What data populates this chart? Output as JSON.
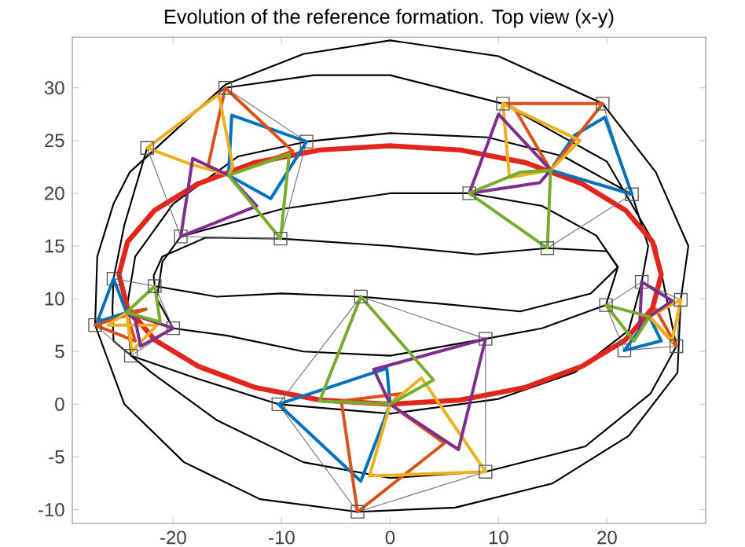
{
  "chart_data": {
    "type": "line",
    "title": "Evolution of the reference formation. Top view (x-y)",
    "xlim": [
      -29.3,
      29.1
    ],
    "ylim": [
      -11.3,
      34.8
    ],
    "xticks": [
      -20,
      -10,
      0,
      10,
      20
    ],
    "yticks": [
      -10,
      -5,
      0,
      5,
      10,
      15,
      20,
      25,
      30
    ],
    "grid": false,
    "marker": "none",
    "line_style": "solid",
    "series": [
      {
        "color": "#000000",
        "x": [
          -27.2,
          -27,
          -25.5,
          -24,
          -15.2,
          -8,
          0,
          10,
          19.6,
          24.5,
          27.5,
          null,
          -27.2,
          -24.5,
          -19,
          -12,
          -3,
          6,
          15,
          22,
          26.5,
          26.8,
          27.5
        ],
        "values": [
          7.5,
          14,
          19,
          22,
          30.3,
          33.2,
          34.5,
          33,
          28.5,
          22,
          15,
          null,
          7.5,
          0,
          -5.5,
          -9,
          -10.2,
          -9.8,
          -7.5,
          -3,
          3,
          9.9,
          15
        ]
      },
      {
        "color": "#000000",
        "x": [
          -25.6,
          -25.5,
          -24.5,
          -22.4,
          -15.2,
          -7,
          0,
          10.4,
          20,
          24.5,
          26.4,
          null,
          -25.6,
          -25.5,
          -22,
          -16,
          -8,
          0,
          8.8,
          18,
          24,
          26.4
        ],
        "values": [
          9,
          11.9,
          17,
          24.3,
          30,
          31.2,
          31.2,
          28.5,
          23,
          15,
          5.5,
          null,
          9,
          6,
          3,
          -1.5,
          -5.5,
          -7,
          -6.4,
          -4,
          1,
          5.5
        ]
      },
      {
        "color": "#000000",
        "x": [
          -24.3,
          -23.5,
          -20,
          -14,
          -7.7,
          0,
          9,
          16,
          22.3,
          23.8,
          null,
          -24.3,
          -23.9,
          -18,
          -10.3,
          0,
          10,
          17,
          22,
          23.2,
          23.8
        ],
        "values": [
          9,
          14,
          19,
          23.5,
          24.9,
          25.7,
          25.3,
          23.5,
          19.9,
          15,
          null,
          9,
          4.6,
          2.5,
          0,
          -0.9,
          0.5,
          3,
          7,
          11.6,
          15
        ]
      },
      {
        "color": "#000000",
        "x": [
          -21.5,
          -21,
          -19.3,
          -10,
          0,
          7.3,
          14,
          19,
          21,
          null,
          -21.5,
          -20,
          -15,
          -8,
          0,
          8.8,
          14,
          19.9,
          21
        ],
        "values": [
          10,
          13.5,
          15.9,
          18.5,
          20,
          20,
          18.8,
          16,
          13,
          null,
          10,
          7.2,
          6.5,
          5,
          4.6,
          6.2,
          7.2,
          9.4,
          13
        ]
      },
      {
        "color": "#000000",
        "x": [
          -21.8,
          -21,
          -17,
          -10.1,
          0,
          8,
          14.5,
          20,
          21,
          null,
          -21.8,
          -21.7,
          -16,
          -10,
          -2.7,
          5,
          12,
          18.5,
          21
        ],
        "values": [
          12.2,
          14,
          15.8,
          15.7,
          15,
          14.2,
          14.8,
          14.5,
          13,
          null,
          12.2,
          11.2,
          10.2,
          10.5,
          10.2,
          9.5,
          8.8,
          10.5,
          13
        ]
      },
      {
        "color": "#e3261b",
        "x": [
          -25,
          -24.2,
          -21.7,
          -17.7,
          -12.5,
          -6.5,
          0,
          6.5,
          12.5,
          17.7,
          21.7,
          24.2,
          25,
          null,
          -25,
          -24.2,
          -21.7,
          -17.7,
          -12.5,
          -6.5,
          0,
          6.5,
          12.5,
          17.7,
          21.7,
          24.2,
          25
        ],
        "values": [
          12.3,
          15.4,
          18.4,
          20.9,
          22.9,
          24.1,
          24.5,
          24.1,
          22.9,
          20.9,
          18.4,
          15.4,
          12.3,
          null,
          12.3,
          9.1,
          6.1,
          3.6,
          1.6,
          0.4,
          0,
          0.4,
          1.6,
          3.6,
          6.1,
          9.1,
          12.3
        ]
      },
      {
        "color": "#6e6e6e",
        "x": [
          -22.4,
          -15.2,
          -7.7,
          null,
          -22.4,
          -19.3,
          -10.1,
          -7.7,
          null,
          7.3,
          10.4,
          19.6,
          22.3,
          null,
          7.3,
          14.5,
          22.3,
          null,
          -27.2,
          -25.5,
          -21.7,
          -20,
          null,
          -27.2,
          -23.9,
          -20,
          null,
          -10.3,
          -2.7,
          8.8,
          8.8,
          null,
          -10.3,
          -3,
          8.8,
          null,
          19.9,
          23.2,
          26.8,
          null,
          19.9,
          21.6,
          26.4,
          26.8
        ],
        "values": [
          24.3,
          30,
          24.9,
          null,
          24.3,
          15.9,
          15.7,
          24.9,
          null,
          20,
          28.5,
          28.5,
          19.9,
          null,
          20,
          14.8,
          19.9,
          null,
          7.5,
          11.9,
          11.2,
          7.2,
          null,
          7.5,
          4.6,
          7.2,
          null,
          0,
          10.2,
          6.2,
          -6.4,
          null,
          0,
          -10.2,
          -6.4,
          null,
          9.4,
          11.6,
          9.9,
          null,
          9.4,
          5.1,
          5.5,
          9.9
        ]
      },
      {
        "color": "#0072bd",
        "x": [
          -14.9,
          -14.6,
          -7.7,
          null,
          -14.9,
          -11,
          -7.7,
          null,
          14.8,
          17,
          19.8,
          22.3,
          null,
          14.8,
          22.3,
          null,
          -27,
          -25.5,
          -24.3,
          null,
          -27,
          -24.3,
          null,
          -10.3,
          -0.3,
          0,
          null,
          -10.3,
          -2.7,
          0,
          null,
          21.6,
          23.9,
          25,
          null,
          21.6,
          25
        ],
        "values": [
          21.7,
          27.4,
          24.9,
          null,
          21.7,
          19.5,
          24.9,
          null,
          22.2,
          25.5,
          27.2,
          19.9,
          null,
          22.2,
          19.9,
          null,
          7.8,
          11.9,
          8.7,
          null,
          7.8,
          8.7,
          null,
          0,
          3.4,
          0,
          null,
          0,
          -7.3,
          0,
          null,
          5.1,
          8.3,
          6,
          null,
          5.1,
          6
        ]
      },
      {
        "color": "#d95319",
        "x": [
          -16.8,
          -15.2,
          -9,
          null,
          -16.8,
          -14.9,
          -9,
          null,
          10.4,
          19.6,
          null,
          10.4,
          11.5,
          14.8,
          19.6,
          null,
          -27.2,
          -23.5,
          null,
          -24.3,
          -23.5,
          null,
          -24.3,
          -22.5,
          null,
          -27.2,
          -22.5,
          null,
          -4.5,
          -3,
          5,
          null,
          -4.5,
          1,
          null,
          0,
          1,
          null,
          0,
          5,
          null,
          23.9,
          24.5,
          26.4,
          null,
          23.9,
          26.4
        ],
        "values": [
          22.5,
          30,
          24,
          null,
          22.5,
          21.7,
          24,
          null,
          28.5,
          28.5,
          null,
          28.5,
          28,
          22.2,
          28.5,
          null,
          7.5,
          6,
          null,
          8.7,
          6,
          null,
          8.7,
          9,
          null,
          7.5,
          9,
          null,
          0.3,
          -10.2,
          -3.7,
          null,
          0.3,
          1,
          null,
          0,
          1,
          null,
          0,
          -3.7,
          null,
          8.3,
          9,
          5.5,
          null,
          8.3,
          5.5
        ]
      },
      {
        "color": "#edb120",
        "x": [
          -22.4,
          -15.8,
          -14.5,
          null,
          -22.4,
          -18.5,
          -14.9,
          -14.5,
          null,
          10.4,
          17.5,
          null,
          10.4,
          11,
          14.8,
          17.5,
          null,
          -26,
          -24.3,
          -23.8,
          -21.5,
          null,
          -26,
          -21.5,
          null,
          -1.9,
          8.8,
          null,
          -1.9,
          0,
          2.9,
          8.8,
          null,
          23.9,
          26.8,
          null,
          23.9,
          26,
          26.8
        ],
        "values": [
          24.3,
          29.4,
          22.5,
          null,
          24.3,
          22.8,
          21.7,
          22.5,
          null,
          28.5,
          25,
          null,
          28.5,
          21.5,
          22.2,
          25,
          null,
          7.5,
          8.7,
          5,
          7.5,
          null,
          7.5,
          7.5,
          null,
          -6.8,
          -6.4,
          null,
          -6.8,
          0,
          2.5,
          -6.4,
          null,
          8.3,
          9.9,
          null,
          8.3,
          6,
          9.9
        ]
      },
      {
        "color": "#7e2f8e",
        "x": [
          -19.3,
          -18.2,
          -14.9,
          -12.3,
          null,
          -19.3,
          -12.3,
          null,
          7.3,
          10,
          14.8,
          null,
          7.3,
          13.8,
          14.8,
          null,
          -24.3,
          -23.5,
          -23,
          -20,
          null,
          -24.3,
          -20,
          null,
          -1.5,
          8.8,
          null,
          -1.5,
          0,
          6.3,
          8.8,
          null,
          23.2,
          26,
          null,
          23,
          23.9,
          26,
          null,
          23,
          23.2
        ],
        "values": [
          15.9,
          23.3,
          21.7,
          18.8,
          null,
          15.9,
          18.8,
          null,
          20,
          27.5,
          22.2,
          null,
          20,
          21,
          22.2,
          null,
          8.7,
          8,
          5.5,
          7.2,
          null,
          8.7,
          7.2,
          null,
          3.3,
          6.2,
          null,
          3.3,
          0,
          -4.3,
          6.2,
          null,
          11.6,
          9.8,
          null,
          7,
          8.3,
          9.8,
          null,
          7,
          11.6
        ]
      },
      {
        "color": "#77ac30",
        "x": [
          -14.9,
          -9.3,
          null,
          -14.9,
          -10.1,
          -9.3,
          null,
          7.3,
          12,
          14.8,
          null,
          7.3,
          14.5,
          14.8,
          null,
          -24.3,
          -21.7,
          -21.2,
          null,
          -24.3,
          -21.2,
          null,
          -6.5,
          -2.7,
          4,
          null,
          -6.5,
          0,
          4,
          null,
          19.9,
          23.9,
          null,
          19.9,
          22.5,
          23.9
        ],
        "values": [
          21.7,
          23.7,
          null,
          21.7,
          15.7,
          23.7,
          null,
          20,
          22,
          22.2,
          null,
          20,
          14.8,
          22.2,
          null,
          8.7,
          11.2,
          7.8,
          null,
          8.7,
          7.8,
          null,
          0.3,
          10.2,
          2.3,
          null,
          0.3,
          0,
          2.3,
          null,
          9.4,
          8.3,
          null,
          9.4,
          6,
          8.3
        ]
      },
      {
        "type": "scatter",
        "marker": "square",
        "color": "#555555",
        "x": [
          -22.4,
          -15.2,
          -7.7,
          -10.1,
          -19.3,
          10.4,
          19.6,
          22.3,
          14.5,
          7.3,
          -25.5,
          -21.7,
          -20,
          -23.9,
          -27.2,
          -2.7,
          8.8,
          8.8,
          -3,
          -10.3,
          23.2,
          26.8,
          26.4,
          21.6,
          19.9
        ],
        "values": [
          24.3,
          30,
          24.9,
          15.7,
          15.9,
          28.5,
          28.5,
          19.9,
          14.8,
          20,
          11.9,
          11.2,
          7.2,
          4.6,
          7.5,
          10.2,
          6.2,
          -6.4,
          -10.2,
          0,
          11.6,
          9.9,
          5.5,
          5.1,
          9.4
        ]
      }
    ]
  }
}
